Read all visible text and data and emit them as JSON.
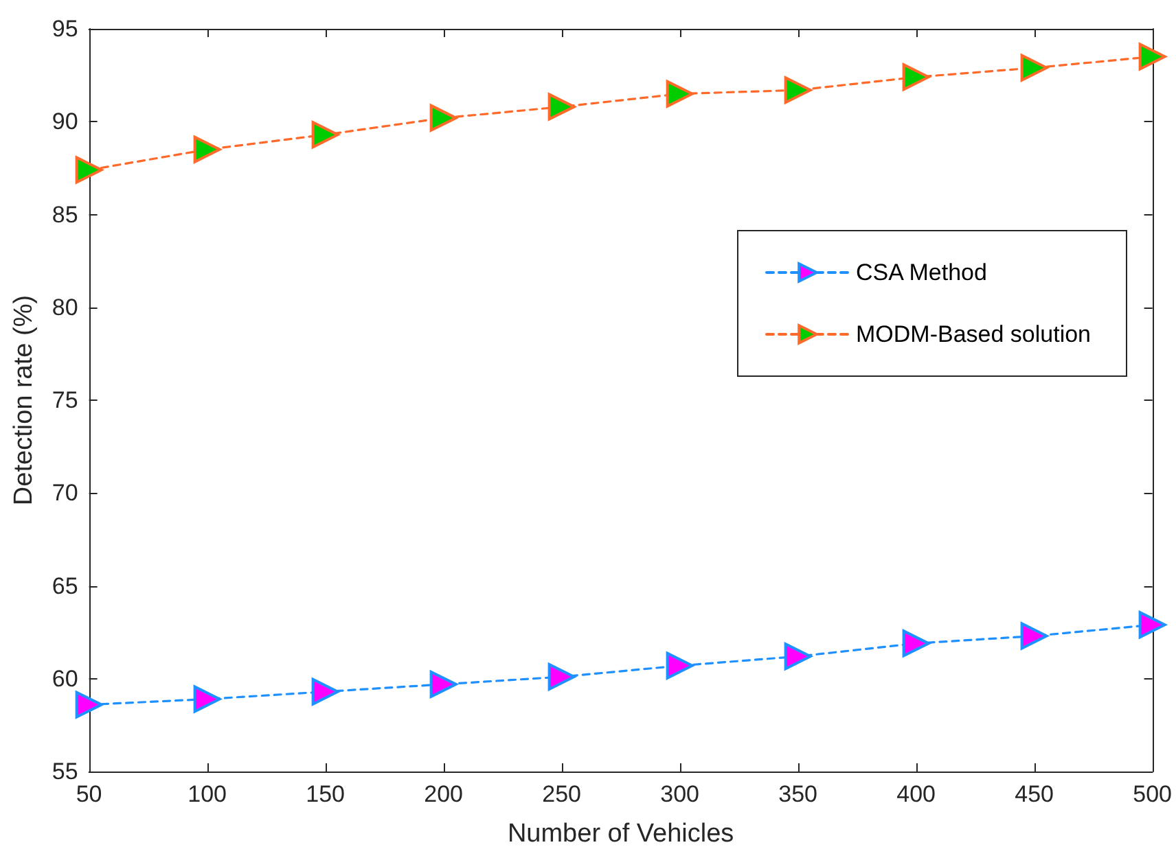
{
  "chart_data": {
    "type": "line",
    "xlabel": "Number of Vehicles",
    "ylabel": "Detection rate (%)",
    "x": [
      50,
      100,
      150,
      200,
      250,
      300,
      350,
      400,
      450,
      500
    ],
    "series": [
      {
        "name": "CSA Method",
        "color": "#1e90ff",
        "values": [
          58.6,
          58.9,
          59.3,
          59.7,
          60.1,
          60.7,
          61.2,
          61.9,
          62.3,
          62.9
        ]
      },
      {
        "name": "MODM-Based solution",
        "color": "#ff6a2a",
        "values": [
          87.4,
          88.5,
          89.3,
          90.2,
          90.8,
          91.5,
          91.7,
          92.4,
          92.9,
          93.5
        ]
      }
    ],
    "xlim": [
      50,
      500
    ],
    "xticks": [
      50,
      100,
      150,
      200,
      250,
      300,
      350,
      400,
      450,
      500
    ],
    "ylim": [
      55,
      95
    ],
    "yticks": [
      55,
      60,
      65,
      70,
      75,
      80,
      85,
      90,
      95
    ],
    "grid": false,
    "legend": "right",
    "marker": "triangle",
    "line_style": "dashed"
  }
}
